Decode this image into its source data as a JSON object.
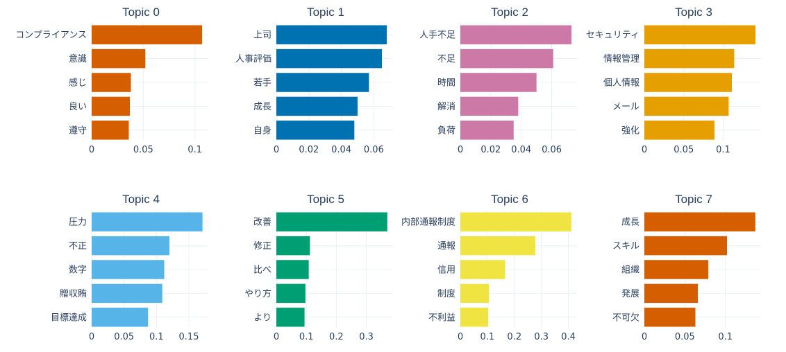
{
  "chart_data": [
    {
      "type": "bar",
      "orientation": "horizontal",
      "title": "Topic 0",
      "categories": [
        "コンプライアンス",
        "意識",
        "感じ",
        "良い",
        "遵守"
      ],
      "values": [
        0.107,
        0.052,
        0.038,
        0.037,
        0.036
      ],
      "xlim": [
        0,
        0.113
      ],
      "xticks": [
        0,
        0.05,
        0.1
      ],
      "xtick_labels": [
        "0",
        "0.05",
        "0.1"
      ],
      "color": "#D55E00",
      "grid": true
    },
    {
      "type": "bar",
      "orientation": "horizontal",
      "title": "Topic 1",
      "categories": [
        "上司",
        "人事評価",
        "若手",
        "成長",
        "自身"
      ],
      "values": [
        0.068,
        0.065,
        0.057,
        0.05,
        0.048
      ],
      "xlim": [
        0,
        0.0718
      ],
      "xticks": [
        0,
        0.02,
        0.04,
        0.06
      ],
      "xtick_labels": [
        "0",
        "0.02",
        "0.04",
        "0.06"
      ],
      "color": "#0072B2",
      "grid": true
    },
    {
      "type": "bar",
      "orientation": "horizontal",
      "title": "Topic 2",
      "categories": [
        "人手不足",
        "不足",
        "時間",
        "解消",
        "負荷"
      ],
      "values": [
        0.073,
        0.061,
        0.05,
        0.038,
        0.035
      ],
      "xlim": [
        0,
        0.0766
      ],
      "xticks": [
        0,
        0.02,
        0.04,
        0.06
      ],
      "xtick_labels": [
        "0",
        "0.02",
        "0.04",
        "0.06"
      ],
      "color": "#CC79A7",
      "grid": true
    },
    {
      "type": "bar",
      "orientation": "horizontal",
      "title": "Topic 3",
      "categories": [
        "セキュリティ",
        "情報管理",
        "個人情報",
        "メール",
        "強化"
      ],
      "values": [
        0.141,
        0.114,
        0.111,
        0.107,
        0.089
      ],
      "xlim": [
        0,
        0.148
      ],
      "xticks": [
        0,
        0.05,
        0.1
      ],
      "xtick_labels": [
        "0",
        "0.05",
        "0.1"
      ],
      "color": "#E69F00",
      "grid": true
    },
    {
      "type": "bar",
      "orientation": "horizontal",
      "title": "Topic 4",
      "categories": [
        "圧力",
        "不正",
        "数字",
        "贈収賄",
        "目標達成"
      ],
      "values": [
        0.171,
        0.12,
        0.112,
        0.109,
        0.087
      ],
      "xlim": [
        0,
        0.18
      ],
      "xticks": [
        0,
        0.05,
        0.1,
        0.15
      ],
      "xtick_labels": [
        "0",
        "0.05",
        "0.1",
        "0.15"
      ],
      "color": "#56B4E9",
      "grid": true
    },
    {
      "type": "bar",
      "orientation": "horizontal",
      "title": "Topic 5",
      "categories": [
        "改善",
        "修正",
        "比べ",
        "やり方",
        "より"
      ],
      "values": [
        0.37,
        0.112,
        0.108,
        0.097,
        0.094
      ],
      "xlim": [
        0,
        0.389
      ],
      "xticks": [
        0,
        0.1,
        0.2,
        0.3
      ],
      "xtick_labels": [
        "0",
        "0.1",
        "0.2",
        "0.3"
      ],
      "color": "#009E73",
      "grid": true
    },
    {
      "type": "bar",
      "orientation": "horizontal",
      "title": "Topic 6",
      "categories": [
        "内部通報制度",
        "通報",
        "信用",
        "制度",
        "不利益"
      ],
      "values": [
        0.411,
        0.278,
        0.166,
        0.106,
        0.103
      ],
      "xlim": [
        0,
        0.432
      ],
      "xticks": [
        0,
        0.1,
        0.2,
        0.3,
        0.4
      ],
      "xtick_labels": [
        "0",
        "0.1",
        "0.2",
        "0.3",
        "0.4"
      ],
      "color": "#F0E442",
      "grid": true
    },
    {
      "type": "bar",
      "orientation": "horizontal",
      "title": "Topic 7",
      "categories": [
        "成長",
        "スキル",
        "組織",
        "発展",
        "不可欠"
      ],
      "values": [
        0.137,
        0.102,
        0.079,
        0.066,
        0.063
      ],
      "xlim": [
        0,
        0.144
      ],
      "xticks": [
        0,
        0.05,
        0.1
      ],
      "xtick_labels": [
        "0",
        "0.05",
        "0.1"
      ],
      "color": "#D55E00",
      "grid": true
    }
  ]
}
